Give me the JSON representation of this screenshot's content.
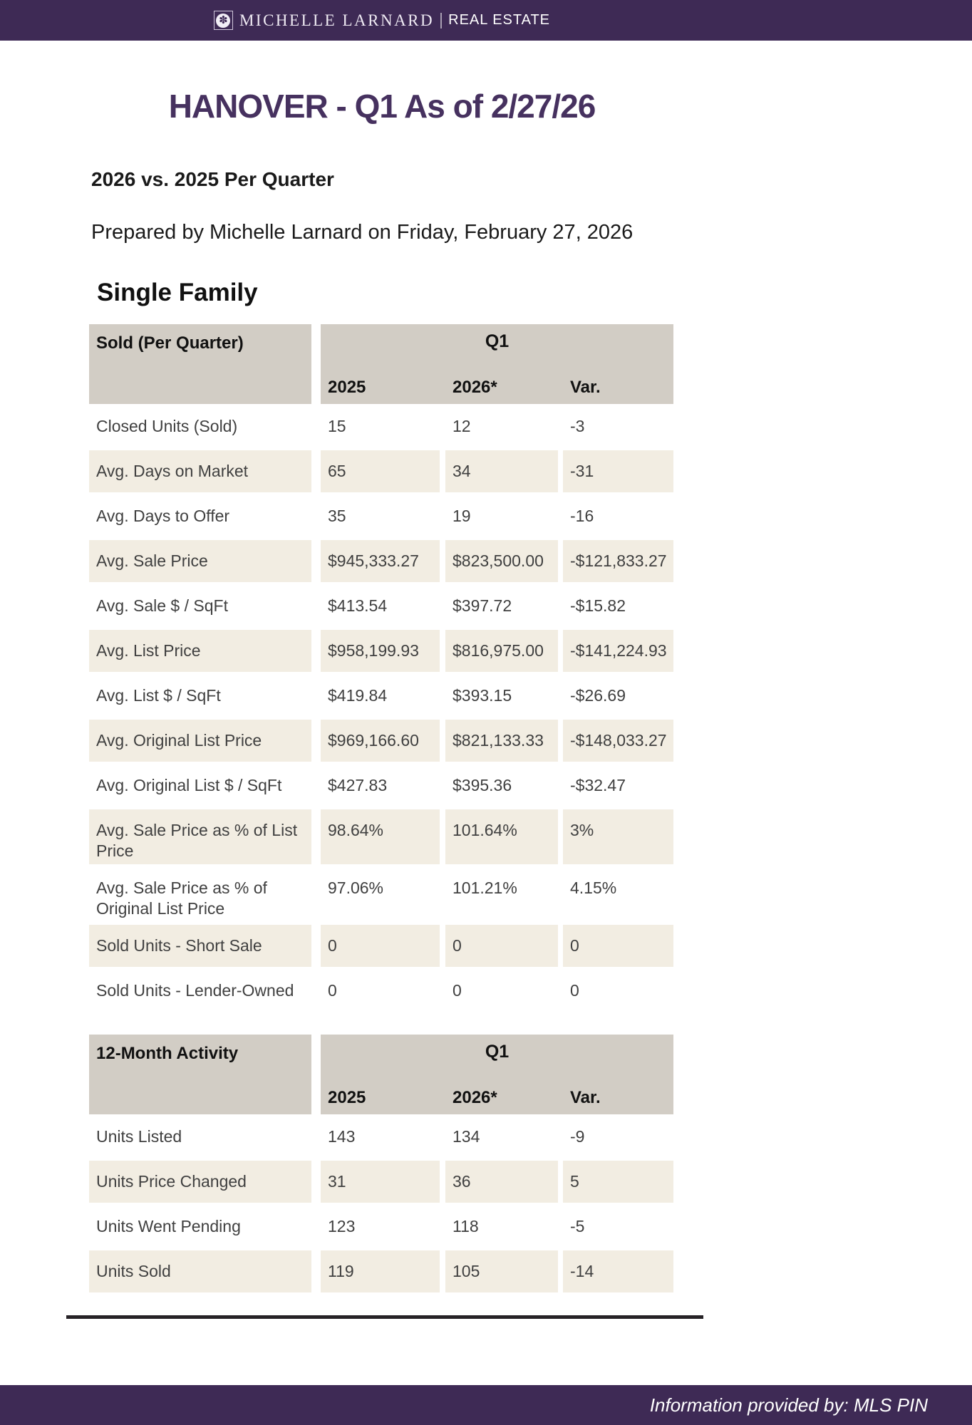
{
  "brand": {
    "flower_icon": "✽",
    "name_serif": "MICHELLE LARNARD",
    "name_sans": "REAL ESTATE"
  },
  "page": {
    "title": "HANOVER - Q1 As of 2/27/26",
    "subtitle": "2026 vs. 2025 Per Quarter",
    "prepared_by": "Prepared by Michelle Larnard on Friday, February 27, 2026",
    "section_heading": "Single Family"
  },
  "colors": {
    "brand_purple": "#3e2a55",
    "title_purple": "#46315f",
    "table_header_bg": "#d2cdc5",
    "stripe_bg": "#f2ede2",
    "text_dark": "#404040"
  },
  "tables": [
    {
      "header_label": "Sold (Per Quarter)",
      "quarter_label": "Q1",
      "columns": [
        "2025",
        "2026*",
        "Var."
      ],
      "rows": [
        {
          "label": "Closed Units (Sold)",
          "values": [
            "15",
            "12",
            "-3"
          ]
        },
        {
          "label": "Avg. Days on Market",
          "values": [
            "65",
            "34",
            "-31"
          ]
        },
        {
          "label": "Avg. Days to Offer",
          "values": [
            "35",
            "19",
            "-16"
          ]
        },
        {
          "label": "Avg. Sale Price",
          "values": [
            "$945,333.27",
            "$823,500.00",
            "-$121,833.27"
          ]
        },
        {
          "label": "Avg. Sale $ / SqFt",
          "values": [
            "$413.54",
            "$397.72",
            "-$15.82"
          ]
        },
        {
          "label": "Avg. List Price",
          "values": [
            "$958,199.93",
            "$816,975.00",
            "-$141,224.93"
          ]
        },
        {
          "label": "Avg. List $ / SqFt",
          "values": [
            "$419.84",
            "$393.15",
            "-$26.69"
          ]
        },
        {
          "label": "Avg. Original List Price",
          "values": [
            "$969,166.60",
            "$821,133.33",
            "-$148,033.27"
          ]
        },
        {
          "label": "Avg. Original List $ / SqFt",
          "values": [
            "$427.83",
            "$395.36",
            "-$32.47"
          ]
        },
        {
          "label": "Avg. Sale Price as % of List Price",
          "values": [
            "98.64%",
            "101.64%",
            "3%"
          ]
        },
        {
          "label": "Avg. Sale Price as % of Original List Price",
          "values": [
            "97.06%",
            "101.21%",
            "4.15%"
          ]
        },
        {
          "label": "Sold Units - Short Sale",
          "values": [
            "0",
            "0",
            "0"
          ]
        },
        {
          "label": "Sold Units - Lender-Owned",
          "values": [
            "0",
            "0",
            "0"
          ]
        }
      ]
    },
    {
      "header_label": "12-Month Activity",
      "quarter_label": "Q1",
      "columns": [
        "2025",
        "2026*",
        "Var."
      ],
      "rows": [
        {
          "label": "Units Listed",
          "values": [
            "143",
            "134",
            "-9"
          ]
        },
        {
          "label": "Units Price Changed",
          "values": [
            "31",
            "36",
            "5"
          ]
        },
        {
          "label": "Units Went Pending",
          "values": [
            "123",
            "118",
            "-5"
          ]
        },
        {
          "label": "Units Sold",
          "values": [
            "119",
            "105",
            "-14"
          ]
        }
      ]
    }
  ],
  "footer": {
    "text": "Information provided by: MLS PIN"
  }
}
